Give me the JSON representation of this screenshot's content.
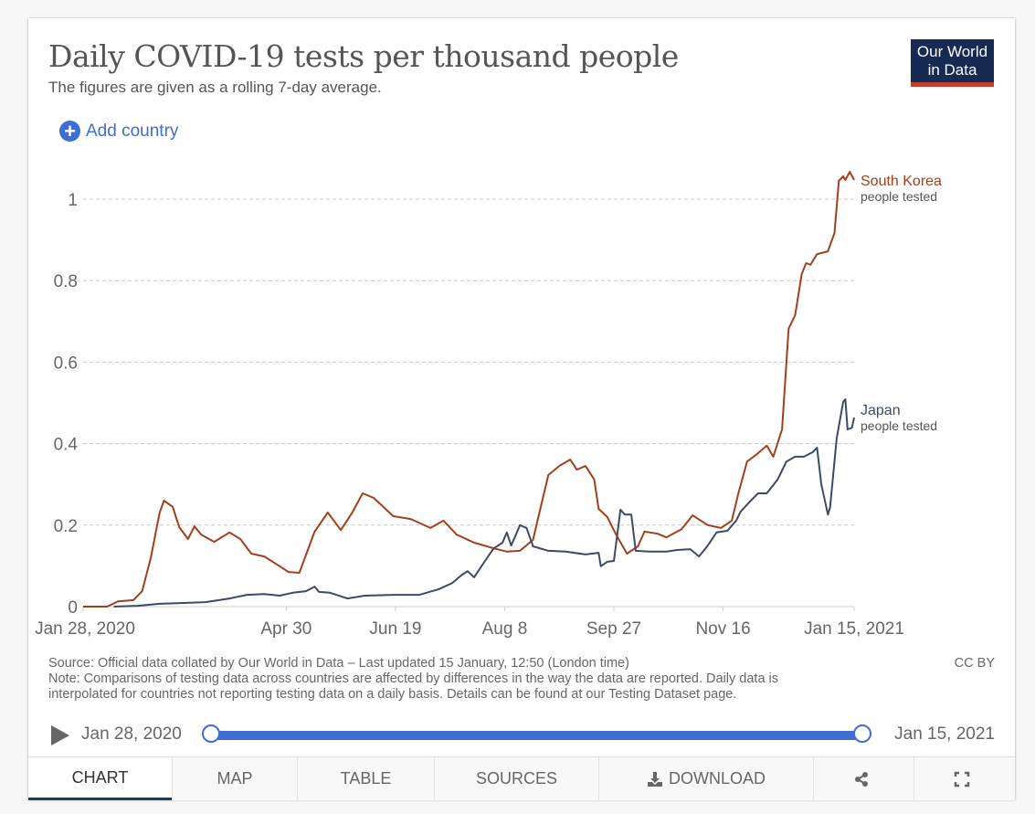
{
  "header": {
    "title": "Daily COVID-19 tests per thousand people",
    "subtitle": "The figures are given as a rolling 7-day average.",
    "logo_line1": "Our World",
    "logo_line2": "in Data"
  },
  "controls": {
    "add_country_label": "Add country",
    "add_country_icon": "plus-circle-icon"
  },
  "colors": {
    "south_korea": "#a1401b",
    "japan": "#3d4a63",
    "accent": "#3f6cd5",
    "logo_bg": "#172a53",
    "logo_bar": "#c63d2b"
  },
  "chart_data": {
    "type": "line",
    "title": "Daily COVID-19 tests per thousand people",
    "subtitle": "The figures are given as a rolling 7-day average.",
    "xlabel": "",
    "ylabel": "",
    "x_unit": "days since Jan 28, 2020",
    "xlim": [
      0,
      353
    ],
    "ylim": [
      0,
      1.1
    ],
    "grid": "horizontal dashed",
    "yticks": [
      {
        "value": 0,
        "label": "0"
      },
      {
        "value": 0.2,
        "label": "0.2"
      },
      {
        "value": 0.4,
        "label": "0.4"
      },
      {
        "value": 0.6,
        "label": "0.6"
      },
      {
        "value": 0.8,
        "label": "0.8"
      },
      {
        "value": 1,
        "label": "1"
      }
    ],
    "xticks": [
      {
        "value": 0,
        "label": "Jan 28, 2020"
      },
      {
        "value": 93,
        "label": "Apr 30"
      },
      {
        "value": 143,
        "label": "Jun 19"
      },
      {
        "value": 193,
        "label": "Aug 8"
      },
      {
        "value": 243,
        "label": "Sep 27"
      },
      {
        "value": 293,
        "label": "Nov 16"
      },
      {
        "value": 353,
        "label": "Jan 15, 2021"
      }
    ],
    "legend_placement": "inline-right",
    "series": [
      {
        "name": "South Korea",
        "sublabel": "people tested",
        "color": "#a1401b",
        "points": [
          [
            0,
            0
          ],
          [
            11,
            0
          ],
          [
            16,
            0.013
          ],
          [
            23,
            0.016
          ],
          [
            27,
            0.038
          ],
          [
            31,
            0.12
          ],
          [
            35,
            0.23
          ],
          [
            37,
            0.26
          ],
          [
            41,
            0.245
          ],
          [
            44,
            0.195
          ],
          [
            48,
            0.166
          ],
          [
            51,
            0.197
          ],
          [
            54,
            0.177
          ],
          [
            60,
            0.159
          ],
          [
            67,
            0.182
          ],
          [
            72,
            0.166
          ],
          [
            77,
            0.13
          ],
          [
            83,
            0.123
          ],
          [
            90,
            0.099
          ],
          [
            94,
            0.085
          ],
          [
            99,
            0.083
          ],
          [
            106,
            0.184
          ],
          [
            112,
            0.231
          ],
          [
            118,
            0.188
          ],
          [
            123,
            0.229
          ],
          [
            128,
            0.278
          ],
          [
            133,
            0.267
          ],
          [
            142,
            0.222
          ],
          [
            150,
            0.215
          ],
          [
            159,
            0.193
          ],
          [
            165,
            0.211
          ],
          [
            171,
            0.177
          ],
          [
            179,
            0.157
          ],
          [
            188,
            0.143
          ],
          [
            194,
            0.135
          ],
          [
            200,
            0.137
          ],
          [
            206,
            0.164
          ],
          [
            209,
            0.233
          ],
          [
            213,
            0.323
          ],
          [
            218,
            0.345
          ],
          [
            223,
            0.361
          ],
          [
            226,
            0.336
          ],
          [
            230,
            0.345
          ],
          [
            234,
            0.312
          ],
          [
            236,
            0.24
          ],
          [
            240,
            0.22
          ],
          [
            244,
            0.177
          ],
          [
            249,
            0.13
          ],
          [
            254,
            0.148
          ],
          [
            257,
            0.184
          ],
          [
            263,
            0.179
          ],
          [
            267,
            0.17
          ],
          [
            274,
            0.19
          ],
          [
            279,
            0.224
          ],
          [
            286,
            0.2
          ],
          [
            292,
            0.193
          ],
          [
            297,
            0.211
          ],
          [
            300,
            0.278
          ],
          [
            304,
            0.356
          ],
          [
            308,
            0.372
          ],
          [
            313,
            0.395
          ],
          [
            316,
            0.368
          ],
          [
            320,
            0.435
          ],
          [
            323,
            0.682
          ],
          [
            326,
            0.715
          ],
          [
            329,
            0.816
          ],
          [
            331,
            0.843
          ],
          [
            333,
            0.839
          ],
          [
            336,
            0.865
          ],
          [
            341,
            0.872
          ],
          [
            344,
            0.917
          ],
          [
            346,
            1.045
          ],
          [
            348,
            1.056
          ],
          [
            349,
            1.047
          ],
          [
            351,
            1.067
          ],
          [
            353,
            1.047
          ]
        ]
      },
      {
        "name": "Japan",
        "sublabel": "people tested",
        "color": "#3d4a63",
        "points": [
          [
            14,
            0
          ],
          [
            25,
            0.002
          ],
          [
            35,
            0.007
          ],
          [
            46,
            0.009
          ],
          [
            56,
            0.011
          ],
          [
            67,
            0.02
          ],
          [
            75,
            0.029
          ],
          [
            83,
            0.031
          ],
          [
            90,
            0.027
          ],
          [
            96,
            0.034
          ],
          [
            102,
            0.038
          ],
          [
            106,
            0.049
          ],
          [
            108,
            0.036
          ],
          [
            113,
            0.034
          ],
          [
            121,
            0.02
          ],
          [
            129,
            0.027
          ],
          [
            142,
            0.029
          ],
          [
            154,
            0.029
          ],
          [
            163,
            0.043
          ],
          [
            169,
            0.058
          ],
          [
            173,
            0.076
          ],
          [
            176,
            0.087
          ],
          [
            179,
            0.072
          ],
          [
            184,
            0.112
          ],
          [
            188,
            0.143
          ],
          [
            192,
            0.157
          ],
          [
            194,
            0.182
          ],
          [
            196,
            0.15
          ],
          [
            200,
            0.2
          ],
          [
            203,
            0.193
          ],
          [
            206,
            0.148
          ],
          [
            213,
            0.137
          ],
          [
            221,
            0.135
          ],
          [
            230,
            0.128
          ],
          [
            236,
            0.132
          ],
          [
            237,
            0.099
          ],
          [
            240,
            0.11
          ],
          [
            243,
            0.112
          ],
          [
            246,
            0.238
          ],
          [
            248,
            0.226
          ],
          [
            251,
            0.226
          ],
          [
            253,
            0.137
          ],
          [
            259,
            0.135
          ],
          [
            267,
            0.135
          ],
          [
            272,
            0.139
          ],
          [
            278,
            0.141
          ],
          [
            282,
            0.123
          ],
          [
            286,
            0.15
          ],
          [
            290,
            0.182
          ],
          [
            295,
            0.186
          ],
          [
            299,
            0.211
          ],
          [
            301,
            0.233
          ],
          [
            305,
            0.256
          ],
          [
            309,
            0.278
          ],
          [
            313,
            0.278
          ],
          [
            318,
            0.312
          ],
          [
            322,
            0.356
          ],
          [
            326,
            0.368
          ],
          [
            330,
            0.368
          ],
          [
            334,
            0.379
          ],
          [
            336,
            0.39
          ],
          [
            338,
            0.3
          ],
          [
            341,
            0.226
          ],
          [
            342,
            0.244
          ],
          [
            345,
            0.413
          ],
          [
            348,
            0.502
          ],
          [
            349,
            0.509
          ],
          [
            350,
            0.435
          ],
          [
            352,
            0.439
          ],
          [
            353,
            0.464
          ]
        ]
      }
    ]
  },
  "footer": {
    "source": "Source: Official data collated by Our World in Data – Last updated 15 January, 12:50 (London time)",
    "note_line1": "Note: Comparisons of testing data across countries are affected by differences in the way the data are reported. Daily data is",
    "note_line2": "interpolated for countries not reporting testing data on a daily basis. Details can be found at our Testing Dataset page.",
    "license": "CC BY"
  },
  "timeline": {
    "start_label": "Jan 28, 2020",
    "end_label": "Jan 15, 2021",
    "range_start_fraction": 0,
    "range_end_fraction": 1
  },
  "tabs": [
    {
      "label": "CHART",
      "active": true
    },
    {
      "label": "MAP",
      "active": false
    },
    {
      "label": "TABLE",
      "active": false
    },
    {
      "label": "SOURCES",
      "active": false
    },
    {
      "label": "DOWNLOAD",
      "active": false,
      "icon": "download-icon"
    },
    {
      "label": "",
      "active": false,
      "icon": "share-icon"
    },
    {
      "label": "",
      "active": false,
      "icon": "fullscreen-icon"
    }
  ]
}
